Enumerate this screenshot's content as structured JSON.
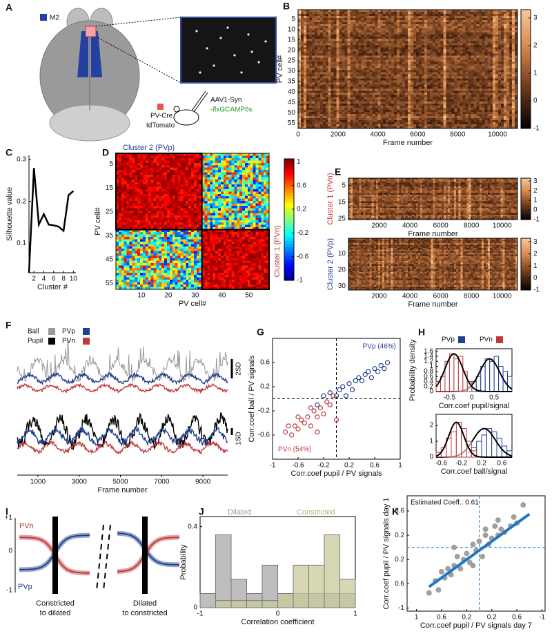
{
  "panel_labels": [
    "A",
    "B",
    "C",
    "D",
    "E",
    "F",
    "G",
    "H",
    "I",
    "J",
    "K"
  ],
  "panel_a": {
    "region": "M2",
    "mouse_line": [
      "PV-Cre",
      "tdTomato"
    ],
    "virus": [
      "AAV1-Syn",
      "-flxGCAMP6s"
    ]
  },
  "panel_i": {
    "curve_labels": [
      "PVn",
      "PVp"
    ],
    "scale": [
      "+1",
      "0",
      "-1"
    ],
    "conditions": [
      [
        "Constricted",
        "to dilated"
      ],
      [
        "Dilated",
        "to constricted"
      ]
    ]
  },
  "chart_data": [
    {
      "type": "heatmap",
      "xlabel": "Frame number",
      "ylabel": "PV cell#",
      "xlim": [
        0,
        11000
      ],
      "ylim": [
        57.5,
        0.5
      ],
      "xticks": [
        0,
        2000,
        4000,
        6000,
        8000,
        10000
      ],
      "yticks": [
        5,
        10,
        15,
        20,
        25,
        30,
        35,
        40,
        45,
        50,
        55
      ],
      "colormap": "copper",
      "clim": [
        -1,
        3.3
      ],
      "cticks": [
        -1,
        0,
        1,
        2,
        3
      ]
    },
    {
      "type": "line",
      "xlabel": "Cluster #",
      "ylabel": "Silhouette value",
      "x": [
        1,
        2,
        3,
        4,
        5,
        6,
        7,
        8,
        9,
        10
      ],
      "values": [
        0.03,
        0.28,
        0.145,
        0.17,
        0.145,
        0.143,
        0.14,
        0.13,
        0.215,
        0.225
      ],
      "color": "#000000",
      "xlim": [
        1,
        10.5
      ],
      "ylim": [
        0.03,
        0.31
      ],
      "xticks": [
        2,
        4,
        6,
        8,
        10
      ],
      "yticks": [
        0.1,
        0.2,
        0.3
      ]
    },
    {
      "type": "matrix",
      "title": "Cluster 2 (PVp)",
      "side_label": "Cluster 1 (PVn)",
      "xlabel": "PV cell#",
      "ylabel": "PV cell#",
      "xlim": [
        0.5,
        57.5
      ],
      "ylim": [
        57.5,
        0.5
      ],
      "xticks": [
        10,
        20,
        30,
        40,
        50
      ],
      "yticks": [
        5,
        15,
        25,
        35,
        45,
        55
      ],
      "cluster_sizes": [
        32,
        25
      ],
      "colormap": "jet",
      "clim": [
        -1,
        1.05
      ],
      "cticks": [
        1,
        0.6,
        0.2,
        -0.2,
        -0.6,
        -1
      ]
    },
    {
      "type": "heatmap",
      "xlabel": "Frame number",
      "ylabel": "Cluster 1 (PVn)",
      "ylabel_color": "#c0393b",
      "xlim": [
        0,
        11000
      ],
      "ylim": [
        25.5,
        0.5
      ],
      "xticks": [
        2000,
        4000,
        6000,
        8000,
        10000
      ],
      "yticks": [
        5,
        15,
        25
      ],
      "colormap": "copper",
      "clim": [
        -1,
        3.3
      ],
      "cticks": [
        -1,
        0,
        1,
        2,
        3
      ]
    },
    {
      "type": "heatmap",
      "xlabel": "Frame number",
      "ylabel": "Cluster 2 (PVp)",
      "ylabel_color": "#1f3f8f",
      "xlim": [
        0,
        11000
      ],
      "ylim": [
        32.5,
        0.5
      ],
      "xticks": [
        2000,
        4000,
        6000,
        8000,
        10000
      ],
      "yticks": [
        10,
        20,
        30
      ],
      "colormap": "copper",
      "clim": [
        -1,
        3.3
      ],
      "cticks": [
        -1,
        0,
        1,
        2,
        3
      ]
    },
    {
      "type": "traces",
      "xlabel": "Frame number",
      "xlim": [
        0,
        10200
      ],
      "xticks": [
        1000,
        3000,
        5000,
        7000,
        9000
      ],
      "series": [
        {
          "name": "Ball",
          "color": "#999999"
        },
        {
          "name": "Pupil",
          "color": "#000000"
        },
        {
          "name": "PVp",
          "color": "#1f3f8f"
        },
        {
          "name": "PVn",
          "color": "#c0393b"
        }
      ],
      "scale_bars": [
        "2SD",
        "1SD"
      ]
    },
    {
      "type": "scatter",
      "xlabel": "Corr.coef pupil / PV signals",
      "ylabel": "Corr.coef ball / PV signals",
      "xlim": [
        -1,
        1
      ],
      "ylim": [
        -1,
        1
      ],
      "xticks": [
        -1,
        -0.6,
        -0.2,
        0.2,
        0.6,
        1
      ],
      "yticks": [
        -0.6,
        -0.2,
        0.2,
        0.6
      ],
      "series": [
        {
          "name": "PVp (46%)",
          "color": "#1f3f8f",
          "x": [
            -0.3,
            -0.2,
            -0.1,
            0,
            0.05,
            0.1,
            0.2,
            0.25,
            0.3,
            0.35,
            0.4,
            0.45,
            0.5,
            0.55,
            0.6,
            0.65,
            0.7,
            0.75,
            0.8,
            0.15
          ],
          "values": [
            -0.1,
            0.05,
            0.1,
            0.05,
            0.15,
            0.2,
            0.25,
            0.15,
            0.3,
            0.35,
            0.3,
            0.4,
            0.45,
            0.35,
            0.5,
            0.45,
            0.55,
            0.5,
            0.6,
            0.05
          ]
        },
        {
          "name": "PVn (54%)",
          "color": "#c0393b",
          "x": [
            -0.8,
            -0.7,
            -0.65,
            -0.6,
            -0.55,
            -0.5,
            -0.45,
            -0.4,
            -0.35,
            -0.3,
            -0.25,
            -0.2,
            -0.15,
            -0.1,
            -0.05,
            -0.6,
            -0.75,
            -0.4,
            -0.3,
            0
          ],
          "values": [
            -0.55,
            -0.6,
            -0.45,
            -0.5,
            -0.35,
            -0.4,
            -0.3,
            -0.45,
            -0.2,
            -0.3,
            -0.15,
            -0.25,
            -0.05,
            -0.1,
            0.05,
            -0.3,
            -0.45,
            -0.15,
            -0.55,
            -0.35
          ]
        }
      ]
    },
    {
      "type": "histogram",
      "xlabel": "Corr.coef pupil/signal",
      "ylabel": "Probability density",
      "bins": [
        -0.8,
        -0.7,
        -0.6,
        -0.5,
        -0.4,
        -0.3,
        -0.2,
        -0.1,
        0,
        0.1,
        0.2,
        0.3,
        0.4,
        0.5,
        0.6,
        0.7,
        0.8,
        0.9
      ],
      "xlim": [
        -0.8,
        0.9
      ],
      "ylim": [
        0,
        1.7
      ],
      "xticks": [
        -0.5,
        0,
        0.5
      ],
      "yticks": [
        0,
        0.2,
        0.4,
        0.6,
        0.8,
        1,
        1.2,
        1.4,
        1.6
      ],
      "series": [
        {
          "name": "PVp",
          "color": "#1f3f8f",
          "values": [
            0,
            0,
            0,
            0,
            0,
            0,
            0,
            0.2,
            0.4,
            0.6,
            1.0,
            1.3,
            1.2,
            1.4,
            1.0,
            0.8,
            0.6
          ],
          "fit_mean": 0.4,
          "fit_sd": 0.22,
          "fit_peak": 1.3
        },
        {
          "name": "PVn",
          "color": "#c0393b",
          "values": [
            0.4,
            0.6,
            1.2,
            1.5,
            1.3,
            1.4,
            0.8,
            0.4,
            0,
            0,
            0,
            0,
            0,
            0,
            0,
            0,
            0
          ],
          "fit_mean": -0.4,
          "fit_sd": 0.2,
          "fit_peak": 1.5
        }
      ]
    },
    {
      "type": "histogram",
      "xlabel": "Corr.coef ball/signal",
      "bins": [
        -0.7,
        -0.6,
        -0.5,
        -0.4,
        -0.3,
        -0.2,
        -0.1,
        0,
        0.1,
        0.2,
        0.3,
        0.4,
        0.5,
        0.6,
        0.7,
        0.8
      ],
      "xlim": [
        -0.7,
        0.8
      ],
      "ylim": [
        0,
        2.7
      ],
      "xticks": [
        -0.6,
        -0.2,
        0.2,
        0.6
      ],
      "yticks": [
        0,
        1,
        2
      ],
      "series": [
        {
          "color": "#1f3f8f",
          "values": [
            0,
            0,
            0,
            0,
            0,
            0,
            0.3,
            0.6,
            1.0,
            1.4,
            1.8,
            1.6,
            1.2,
            0.7,
            0.4
          ],
          "fit_mean": 0.25,
          "fit_sd": 0.22,
          "fit_peak": 1.8
        },
        {
          "color": "#c0393b",
          "values": [
            0.3,
            0.6,
            1.2,
            1.6,
            2.2,
            1.8,
            1.0,
            0.4,
            0,
            0,
            0,
            0,
            0,
            0,
            0
          ],
          "fit_mean": -0.3,
          "fit_sd": 0.15,
          "fit_peak": 2.2
        }
      ]
    },
    {
      "type": "histogram",
      "xlabel": "Correlation coefficient",
      "ylabel": "Probability",
      "bins": [
        -1,
        -0.8,
        -0.6,
        -0.4,
        -0.2,
        0,
        0.2,
        0.4,
        0.6,
        0.8,
        1
      ],
      "xlim": [
        -1,
        1
      ],
      "ylim": [
        0,
        0.45
      ],
      "xticks": [
        -1,
        0,
        1
      ],
      "yticks": [
        0,
        0.4
      ],
      "series": [
        {
          "name": "Dilated",
          "color": "#a8a8a8",
          "values": [
            0.07,
            0.36,
            0.14,
            0.07,
            0.21,
            0.07,
            0.07,
            0.07,
            0.07,
            0.07
          ]
        },
        {
          "name": "Constricted",
          "color": "#c9c99a",
          "values": [
            0,
            0.035,
            0.035,
            0.035,
            0.035,
            0.07,
            0.21,
            0.21,
            0.36,
            0.14
          ]
        }
      ]
    },
    {
      "type": "scatter",
      "xlabel": "Corr.coef pupil / PV signals day 7",
      "ylabel": "Corr.coef pupil / PV signals day 1",
      "annotation": "Estimated Coeff.: 0.61",
      "xlim": [
        1.15,
        -1.05
      ],
      "ylim": [
        -1.05,
        0.85
      ],
      "xticks": [
        1,
        0.6,
        0.2,
        {
          "value": -0.2,
          "label": "0.2"
        },
        {
          "value": -0.6,
          "label": "0.6"
        },
        -1
      ],
      "yticks": [
        0.6,
        0.2,
        {
          "value": -0.2,
          "label": "0.2"
        },
        {
          "value": -0.6,
          "label": "0.6"
        },
        -1
      ],
      "color": "#a0a0a0",
      "x": [
        0.8,
        0.7,
        0.65,
        0.6,
        0.55,
        0.5,
        0.45,
        0.4,
        0.35,
        0.3,
        0.25,
        0.2,
        0.15,
        0.1,
        0.05,
        0,
        -0.05,
        -0.1,
        -0.15,
        -0.2,
        -0.25,
        -0.3,
        -0.35,
        -0.4,
        -0.5,
        -0.55,
        -0.6,
        -0.7,
        -0.3,
        0.1,
        0.4,
        -0.1
      ],
      "values": [
        -0.75,
        -0.55,
        -0.7,
        -0.4,
        -0.5,
        -0.35,
        -0.45,
        -0.3,
        -0.15,
        -0.35,
        -0.2,
        -0.1,
        -0.25,
        0.05,
        -0.05,
        0.1,
        -0.15,
        0.2,
        0.05,
        0.15,
        0.35,
        0.2,
        0.3,
        0.25,
        0.35,
        0.5,
        0.4,
        0.7,
        0.45,
        -0.3,
        0,
        0.3
      ],
      "fit": {
        "color": "#1f77c4",
        "x": [
          0.8,
          -0.8
        ],
        "values": [
          -0.65,
          0.55
        ]
      }
    }
  ]
}
